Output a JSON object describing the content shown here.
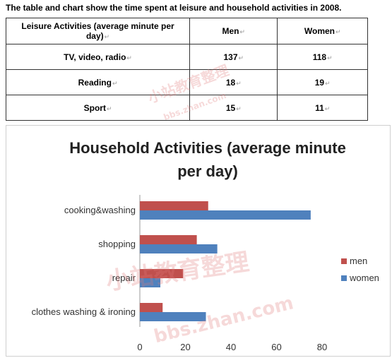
{
  "heading": "The table and chart show the time spent at leisure and household activities in 2008.",
  "table": {
    "headers": [
      "Leisure Activities (average minute per day)",
      "Men",
      "Women"
    ],
    "rows": [
      [
        "TV, video, radio",
        "137",
        "118"
      ],
      [
        "Reading",
        "18",
        "19"
      ],
      [
        "Sport",
        "15",
        "11"
      ]
    ]
  },
  "watermark": {
    "text_cn": "小站教育整理",
    "text_url": "bbs.zhan.com"
  },
  "chart_data": {
    "type": "bar",
    "orientation": "horizontal",
    "title": "Household Activities (average minute per day)",
    "title_lines": [
      "Household Activities (average minute",
      "per day)"
    ],
    "categories": [
      "cooking&washing",
      "shopping",
      "repair",
      "clothes washing & ironing"
    ],
    "series": [
      {
        "name": "men",
        "color": "#c0504d",
        "values": [
          30,
          25,
          19,
          10
        ]
      },
      {
        "name": "women",
        "color": "#4f81bd",
        "values": [
          75,
          34,
          9,
          29
        ]
      }
    ],
    "xlim": [
      0,
      80
    ],
    "xticks": [
      "0",
      "20",
      "40",
      "60",
      "80"
    ],
    "xlabel": "",
    "ylabel": "",
    "grid": false,
    "legend": "right"
  }
}
